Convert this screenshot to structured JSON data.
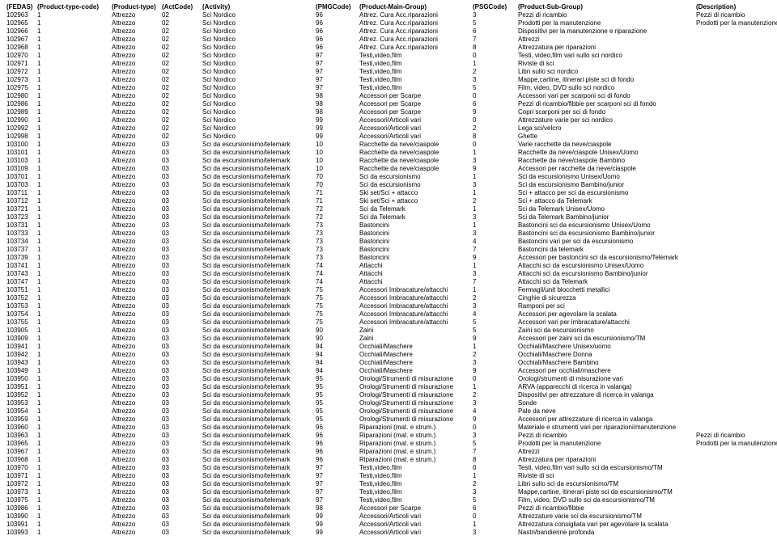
{
  "columns": [
    "(FEDAS)",
    "(Product-type-code)",
    "(Product-type)",
    "(ActCode)",
    "(Activity)",
    "(PMGCode)",
    "(Product-Main-Group)",
    "(PSGCode)",
    "(Product-Sub-Group)",
    "(Description)"
  ],
  "rows": [
    [
      "102963",
      "1",
      "Attrezzo",
      "02",
      "Sci Nordico",
      "96",
      "Attrez. Cura Acc.riparazioni",
      "3",
      "Pezzi di ricambio",
      "Pezzi di ricambio"
    ],
    [
      "102965",
      "1",
      "Attrezzo",
      "02",
      "Sci Nordico",
      "96",
      "Attrez. Cura Acc.riparazioni",
      "5",
      "Prodotti per la manutenzione",
      "Prodotti per la manutenzione"
    ],
    [
      "102966",
      "1",
      "Attrezzo",
      "02",
      "Sci Nordico",
      "96",
      "Attrez. Cura Acc.riparazioni",
      "6",
      "Dispositivi per la manutenzione e riparazione",
      ""
    ],
    [
      "102967",
      "1",
      "Attrezzo",
      "02",
      "Sci Nordico",
      "96",
      "Attrez. Cura Acc.riparazioni",
      "7",
      "Attrezzi",
      ""
    ],
    [
      "102968",
      "1",
      "Attrezzo",
      "02",
      "Sci Nordico",
      "96",
      "Attrez. Cura Acc.riparazioni",
      "8",
      "Attrezzatura per riparazioni",
      ""
    ],
    [
      "102970",
      "1",
      "Attrezzo",
      "02",
      "Sci Nordico",
      "97",
      "Testi,video,film",
      "0",
      "Testi, video,film vari sullo sci nordico",
      ""
    ],
    [
      "102971",
      "1",
      "Attrezzo",
      "02",
      "Sci Nordico",
      "97",
      "Testi,video,film",
      "1",
      "Riviste di sci",
      ""
    ],
    [
      "102972",
      "1",
      "Attrezzo",
      "02",
      "Sci Nordico",
      "97",
      "Testi,video,film",
      "2",
      "Libri sullo sci nordico",
      ""
    ],
    [
      "102973",
      "1",
      "Attrezzo",
      "02",
      "Sci Nordico",
      "97",
      "Testi,video,film",
      "3",
      "Mappe,cartine, itinerari piste sci di fondo",
      ""
    ],
    [
      "102975",
      "1",
      "Attrezzo",
      "02",
      "Sci Nordico",
      "97",
      "Testi,video,film",
      "5",
      "Film, video, DVD sullo sci nordico",
      ""
    ],
    [
      "102980",
      "1",
      "Attrezzo",
      "02",
      "Sci Nordico",
      "98",
      "Accessori per Scarpe",
      "0",
      "Accessori vari per scarponi sci di fondo",
      ""
    ],
    [
      "102986",
      "1",
      "Attrezzo",
      "02",
      "Sci Nordico",
      "98",
      "Accessori per Scarpe",
      "6",
      "Pezzi di ricambio/fibbie per scarponi sci di fondo",
      ""
    ],
    [
      "102989",
      "1",
      "Attrezzo",
      "02",
      "Sci Nordico",
      "98",
      "Accessori per Scarpe",
      "9",
      "Copri scarponi per sci di fondo",
      ""
    ],
    [
      "102990",
      "1",
      "Attrezzo",
      "02",
      "Sci Nordico",
      "99",
      "Accessori/Articoli vari",
      "0",
      "Attrezzature varie per sci nordico",
      ""
    ],
    [
      "102992",
      "1",
      "Attrezzo",
      "02",
      "Sci Nordico",
      "99",
      "Accessori/Articoli vari",
      "2",
      "Lega sci/velcro",
      ""
    ],
    [
      "102998",
      "1",
      "Attrezzo",
      "02",
      "Sci Nordico",
      "99",
      "Accessori/Articoli vari",
      "8",
      "Ghette",
      ""
    ],
    [
      "103100",
      "1",
      "Attrezzo",
      "03",
      "Sci da escursionismo/telemark",
      "10",
      "Racchette da neve/ciaspole",
      "0",
      "Varie racchette da neve/ciaspole",
      ""
    ],
    [
      "103101",
      "1",
      "Attrezzo",
      "03",
      "Sci da escursionismo/telemark",
      "10",
      "Racchette da neve/ciaspole",
      "1",
      "Racchette da neve/ciaspole Unisex/Uomo",
      ""
    ],
    [
      "103103",
      "1",
      "Attrezzo",
      "03",
      "Sci da escursionismo/telemark",
      "10",
      "Racchette da neve/ciaspole",
      "3",
      "Racchette da neve/ciaspole Bambino",
      ""
    ],
    [
      "103109",
      "1",
      "Attrezzo",
      "03",
      "Sci da escursionismo/telemark",
      "10",
      "Racchette da neve/ciaspole",
      "9",
      "Accessori per racchette da neve/ciaspole",
      ""
    ],
    [
      "103701",
      "1",
      "Attrezzo",
      "03",
      "Sci da escursionismo/telemark",
      "70",
      "Sci da escursionismo",
      "1",
      "Sci da escursionismo Unisex/Uomo",
      ""
    ],
    [
      "103703",
      "1",
      "Attrezzo",
      "03",
      "Sci da escursionismo/telemark",
      "70",
      "Sci da escursionismo",
      "3",
      "Sci da escursionismo Bambino/junior",
      ""
    ],
    [
      "103711",
      "1",
      "Attrezzo",
      "03",
      "Sci da escursionismo/telemark",
      "71",
      "Ski set/Sci + attacco",
      "1",
      "Sci + attacco per sci da escursionismo",
      ""
    ],
    [
      "103712",
      "1",
      "Attrezzo",
      "03",
      "Sci da escursionismo/telemark",
      "71",
      "Ski set/Sci + attacco",
      "2",
      "Sci + attacco da Telemark",
      ""
    ],
    [
      "103721",
      "1",
      "Attrezzo",
      "03",
      "Sci da escursionismo/telemark",
      "72",
      "Sci da Telemark",
      "1",
      "Sci da Telemark Unisex/Uomo",
      ""
    ],
    [
      "103723",
      "1",
      "Attrezzo",
      "03",
      "Sci da escursionismo/telemark",
      "72",
      "Sci da Telemark",
      "3",
      "Sci da Telemark Bambino/junior",
      ""
    ],
    [
      "103731",
      "1",
      "Attrezzo",
      "03",
      "Sci da escursionismo/telemark",
      "73",
      "Bastoncini",
      "1",
      "Bastoncini sci da escursionismo Unisex/Uomo",
      ""
    ],
    [
      "103733",
      "1",
      "Attrezzo",
      "03",
      "Sci da escursionismo/telemark",
      "73",
      "Bastoncini",
      "3",
      "Bastoncini sci da escursionismo Bambino/junior",
      ""
    ],
    [
      "103734",
      "1",
      "Attrezzo",
      "03",
      "Sci da escursionismo/telemark",
      "73",
      "Bastoncini",
      "4",
      "Bastoncini vari per sci da escursionismo",
      ""
    ],
    [
      "103737",
      "1",
      "Attrezzo",
      "03",
      "Sci da escursionismo/telemark",
      "73",
      "Bastoncini",
      "7",
      "Bastoncini da telemark",
      ""
    ],
    [
      "103739",
      "1",
      "Attrezzo",
      "03",
      "Sci da escursionismo/telemark",
      "73",
      "Bastoncini",
      "9",
      "Accessori per bastoncini sci da escursionismo/Telemark",
      ""
    ],
    [
      "103741",
      "1",
      "Attrezzo",
      "03",
      "Sci da escursionismo/telemark",
      "74",
      "Attacchi",
      "1",
      "Attacchi sci da escursionismo Unisex/Uomo",
      ""
    ],
    [
      "103743",
      "1",
      "Attrezzo",
      "03",
      "Sci da escursionismo/telemark",
      "74",
      "Attacchi",
      "3",
      "Attacchi sci da escursionismo Bambino/junior",
      ""
    ],
    [
      "103747",
      "1",
      "Attrezzo",
      "03",
      "Sci da escursionismo/telemark",
      "74",
      "Attacchi",
      "7",
      "Attacchi sci da Telemark",
      ""
    ],
    [
      "103751",
      "1",
      "Attrezzo",
      "03",
      "Sci da escursionismo/telemark",
      "75",
      "Accessori Imbracature/attacchi",
      "1",
      "Fermagli/unit blocchetti metallici",
      ""
    ],
    [
      "103752",
      "1",
      "Attrezzo",
      "03",
      "Sci da escursionismo/telemark",
      "75",
      "Accessori Imbracature/attacchi",
      "2",
      "Cinghie di sicurezza",
      ""
    ],
    [
      "103753",
      "1",
      "Attrezzo",
      "03",
      "Sci da escursionismo/telemark",
      "75",
      "Accessori Imbracature/attacchi",
      "3",
      "Ramponi per sci",
      ""
    ],
    [
      "103754",
      "1",
      "Attrezzo",
      "03",
      "Sci da escursionismo/telemark",
      "75",
      "Accessori Imbracature/attacchi",
      "4",
      "Accessori per agevolare la scalata",
      ""
    ],
    [
      "103755",
      "1",
      "Attrezzo",
      "03",
      "Sci da escursionismo/telemark",
      "75",
      "Accessori Imbracature/attacchi",
      "5",
      "Accessori vari per imbracature/attacchi",
      ""
    ],
    [
      "103905",
      "1",
      "Attrezzo",
      "03",
      "Sci da escursionismo/telemark",
      "90",
      "Zaini",
      "5",
      "Zaini sci da escursionismo",
      ""
    ],
    [
      "103909",
      "1",
      "Attrezzo",
      "03",
      "Sci da escursionismo/telemark",
      "90",
      "Zaini",
      "9",
      "Accessori per zaini sci da escursionismo/TM",
      ""
    ],
    [
      "103941",
      "1",
      "Attrezzo",
      "03",
      "Sci da escursionismo/telemark",
      "94",
      "Occhiali/Maschere",
      "1",
      "Occhiali/Maschere Unisex/uomo",
      ""
    ],
    [
      "103942",
      "1",
      "Attrezzo",
      "03",
      "Sci da escursionismo/telemark",
      "94",
      "Occhiali/Maschere",
      "2",
      "Occhiali/Maschere Donna",
      ""
    ],
    [
      "103943",
      "1",
      "Attrezzo",
      "03",
      "Sci da escursionismo/telemark",
      "94",
      "Occhiali/Maschere",
      "3",
      "Occhiali/Maschere Bambino",
      ""
    ],
    [
      "103949",
      "1",
      "Attrezzo",
      "03",
      "Sci da escursionismo/telemark",
      "94",
      "Occhiali/Maschere",
      "9",
      "Accessori per occhiali/maschere",
      ""
    ],
    [
      "103950",
      "1",
      "Attrezzo",
      "03",
      "Sci da escursionismo/telemark",
      "95",
      "Orologi/Strumenti di misurazione",
      "0",
      "Orologi/strumenti di misurazione vari",
      ""
    ],
    [
      "103951",
      "1",
      "Attrezzo",
      "03",
      "Sci da escursionismo/telemark",
      "95",
      "Orologi/Strumenti di misurazione",
      "1",
      "ARVA (apparecchi di ricerca in valanga)",
      ""
    ],
    [
      "103952",
      "1",
      "Attrezzo",
      "03",
      "Sci da escursionismo/telemark",
      "95",
      "Orologi/Strumenti di misurazione",
      "2",
      "Dispositivi per attrezzature di ricerca in valanga",
      ""
    ],
    [
      "103953",
      "1",
      "Attrezzo",
      "03",
      "Sci da escursionismo/telemark",
      "95",
      "Orologi/Strumenti di misurazione",
      "3",
      "Sonde",
      ""
    ],
    [
      "103954",
      "1",
      "Attrezzo",
      "03",
      "Sci da escursionismo/telemark",
      "95",
      "Orologi/Strumenti di misurazione",
      "4",
      "Pale da neve",
      ""
    ],
    [
      "103959",
      "1",
      "Attrezzo",
      "03",
      "Sci da escursionismo/telemark",
      "95",
      "Orologi/Strumenti di misurazione",
      "9",
      "Accessori per attrezzature di ricerca in valanga",
      ""
    ],
    [
      "103960",
      "1",
      "Attrezzo",
      "03",
      "Sci da escursionismo/telemark",
      "96",
      "Riparazioni (mat. e strum.)",
      "0",
      "Materiale e strumenti vari per riparazioni/manutenzione",
      ""
    ],
    [
      "103963",
      "1",
      "Attrezzo",
      "03",
      "Sci da escursionismo/telemark",
      "96",
      "Riparazioni (mat. e strum.)",
      "3",
      "Pezzi di ricambio",
      "Pezzi di ricambio"
    ],
    [
      "103965",
      "1",
      "Attrezzo",
      "03",
      "Sci da escursionismo/telemark",
      "96",
      "Riparazioni (mat. e strum.)",
      "5",
      "Prodotti per la manutenzione",
      "Prodotti per la manutenzione"
    ],
    [
      "103967",
      "1",
      "Attrezzo",
      "03",
      "Sci da escursionismo/telemark",
      "96",
      "Riparazioni (mat. e strum.)",
      "7",
      "Attrezzi",
      ""
    ],
    [
      "103968",
      "1",
      "Attrezzo",
      "03",
      "Sci da escursionismo/telemark",
      "96",
      "Riparazioni (mat. e strum.)",
      "8",
      "Attrezzatura per riparazioni",
      ""
    ],
    [
      "103970",
      "1",
      "Attrezzo",
      "03",
      "Sci da escursionismo/telemark",
      "97",
      "Testi,video,film",
      "0",
      "Testi, video,film vari sullo sci da escursionismo/TM",
      ""
    ],
    [
      "103971",
      "1",
      "Attrezzo",
      "03",
      "Sci da escursionismo/telemark",
      "97",
      "Testi,video,film",
      "1",
      "Riviste di sci",
      ""
    ],
    [
      "103972",
      "1",
      "Attrezzo",
      "03",
      "Sci da escursionismo/telemark",
      "97",
      "Testi,video,film",
      "2",
      "Libri sullo sci da escursionismo/TM",
      ""
    ],
    [
      "103973",
      "1",
      "Attrezzo",
      "03",
      "Sci da escursionismo/telemark",
      "97",
      "Testi,video,film",
      "3",
      "Mappe,cartine, itinerari piste sci da escursionismo/TM",
      ""
    ],
    [
      "103975",
      "1",
      "Attrezzo",
      "03",
      "Sci da escursionismo/telemark",
      "97",
      "Testi,video,film",
      "5",
      "Film, video, DVD sullo sci da escursionismo/TM",
      ""
    ],
    [
      "103986",
      "1",
      "Attrezzo",
      "03",
      "Sci da escursionismo/telemark",
      "98",
      "Accessori per Scarpe",
      "6",
      "Pezzi di ricambio/fibbie",
      ""
    ],
    [
      "103990",
      "1",
      "Attrezzo",
      "03",
      "Sci da escursionismo/telemark",
      "99",
      "Accessori/Articoli vari",
      "0",
      "Attrezzature varie sci da escursionismo/TM",
      ""
    ],
    [
      "103991",
      "1",
      "Attrezzo",
      "03",
      "Sci da escursionismo/telemark",
      "99",
      "Accessori/Articoli vari",
      "1",
      "Attrezzatura consigliata vari per agevolare la scalata",
      ""
    ],
    [
      "103993",
      "1",
      "Attrezzo",
      "03",
      "Sci da escursionismo/telemark",
      "99",
      "Accessori/Articoli vari",
      "3",
      "Nastri/bandierine profonda",
      ""
    ]
  ]
}
